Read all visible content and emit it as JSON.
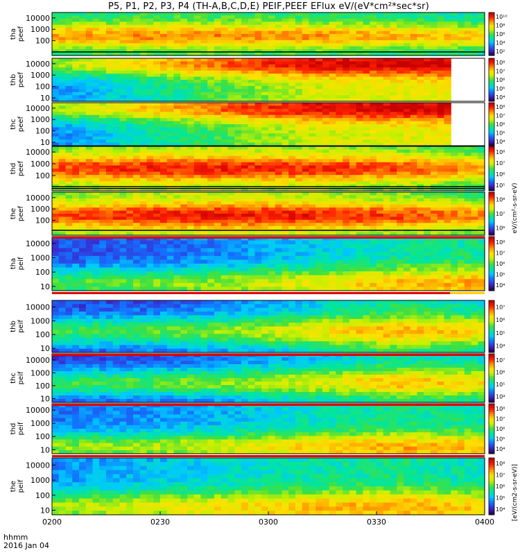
{
  "figure": {
    "title": "P5, P1, P2, P3, P4 (TH-A,B,C,D,E) PEIF,PEEF EFlux eV/(eV*cm²*sec*sr)",
    "time_axis_label": "hhmm",
    "date_label": "2016 Jan 04",
    "colorbar_caption_top": "eV/(cm²-s-sr-eV)",
    "colorbar_caption_bottom": "[eV/(cm2-s-sr-eV)]"
  },
  "chart_data": {
    "type": "heatmap",
    "x_ticks": [
      "0200",
      "0230",
      "0300",
      "0330",
      "0400"
    ],
    "x_range": [
      "0200",
      "0400"
    ],
    "y_scale": "log",
    "y_range_eV": [
      5,
      30000
    ],
    "colormap": [
      "#2a005a",
      "#3a2bd0",
      "#1470ff",
      "#00c8ff",
      "#00e6a0",
      "#40e040",
      "#c8f000",
      "#ffe000",
      "#ff9000",
      "#ff2000",
      "#c80000"
    ],
    "panels": [
      {
        "id": "tha_peef",
        "label_line1": "tha",
        "label_line2": "peef",
        "y_ticks": [
          "100",
          "1000",
          "10000"
        ],
        "cbar_ticks": [
          "10²",
          "10⁴",
          "10⁶",
          "10⁸",
          "10¹⁰"
        ],
        "cbar_range_exp": [
          1.5,
          10.5
        ],
        "level": [
          0.55,
          0.6,
          0.62,
          0.58,
          0.52,
          0.45
        ],
        "band_mid": 0.55,
        "lines": [
          0.05
        ]
      },
      {
        "id": "thb_peef",
        "label_line1": "thb",
        "label_line2": "peef",
        "y_ticks": [
          "10",
          "100",
          "1000",
          "10000"
        ],
        "cbar_ticks": [
          "10⁴",
          "10⁵",
          "10⁶",
          "10⁷",
          "10⁸"
        ],
        "cbar_range_exp": [
          3.5,
          8.5
        ],
        "level": [
          0.2,
          0.45,
          0.7,
          0.9,
          0.95,
          1.0
        ],
        "band_mid": 0.1,
        "lines": [],
        "data_end_fraction": 0.91
      },
      {
        "id": "thc_peef",
        "label_line1": "thc",
        "label_line2": "peef",
        "y_ticks": [
          "10",
          "100",
          "1000",
          "10000"
        ],
        "cbar_ticks": [
          "10⁴",
          "10⁵",
          "10⁶",
          "10⁷",
          "10⁸"
        ],
        "cbar_range_exp": [
          3.5,
          8.5
        ],
        "level": [
          0.2,
          0.45,
          0.7,
          0.9,
          0.95,
          1.0
        ],
        "band_mid": 0.1,
        "lines": [],
        "data_end_fraction": 0.91
      },
      {
        "id": "thd_peef",
        "label_line1": "thd",
        "label_line2": "peef",
        "y_ticks": [
          "100",
          "1000",
          "10000"
        ],
        "cbar_ticks": [
          "10⁵",
          "10⁶",
          "10⁷",
          "10⁸"
        ],
        "cbar_range_exp": [
          4.5,
          8.5
        ],
        "level": [
          0.72,
          0.8,
          0.82,
          0.78,
          0.72,
          0.55
        ],
        "band_mid": 0.5,
        "lines": [
          0.06,
          0.02
        ]
      },
      {
        "id": "the_peef",
        "label_line1": "the",
        "label_line2": "peef",
        "y_ticks": [
          "100",
          "1000",
          "10000"
        ],
        "cbar_ticks": [
          "10⁶",
          "10⁷",
          "10⁸"
        ],
        "cbar_range_exp": [
          5.5,
          8.5
        ],
        "level": [
          0.72,
          0.82,
          0.86,
          0.82,
          0.74,
          0.6
        ],
        "band_mid": 0.55,
        "lines": [
          0.08
        ]
      },
      {
        "id": "tha_peif",
        "label_line1": "tha",
        "label_line2": "peif",
        "y_ticks": [
          "10",
          "100",
          "1000",
          "10000"
        ],
        "cbar_ticks": [
          "10⁴",
          "10⁵",
          "10⁶",
          "10⁷",
          "10⁸"
        ],
        "cbar_range_exp": [
          3.5,
          8.5
        ],
        "level": [
          0.05,
          0.1,
          0.2,
          0.35,
          0.5,
          0.55
        ],
        "band_mid": 0.9,
        "lines": []
      },
      {
        "id": "thb_peif",
        "label_line1": "thb",
        "label_line2": "peif",
        "y_ticks": [
          "10",
          "100",
          "1000",
          "10000"
        ],
        "cbar_ticks": [
          "10⁴",
          "10⁵",
          "10⁶",
          "10⁷"
        ],
        "cbar_range_exp": [
          3.5,
          7.5
        ],
        "level": [
          0.0,
          0.05,
          0.15,
          0.35,
          0.55,
          0.4
        ],
        "band_mid": 0.6,
        "lines": []
      },
      {
        "id": "thc_peif",
        "label_line1": "thc",
        "label_line2": "peif",
        "y_ticks": [
          "10",
          "100",
          "1000",
          "10000"
        ],
        "cbar_ticks": [
          "10⁴",
          "10⁵",
          "10⁶",
          "10⁷"
        ],
        "cbar_range_exp": [
          3.5,
          7.5
        ],
        "level": [
          0.0,
          0.05,
          0.15,
          0.3,
          0.5,
          0.4
        ],
        "band_mid": 0.6,
        "lines": []
      },
      {
        "id": "thd_peif",
        "label_line1": "thd",
        "label_line2": "peif",
        "y_ticks": [
          "10",
          "100",
          "1000",
          "10000"
        ],
        "cbar_ticks": [
          "10⁴",
          "10⁵",
          "10⁶",
          "10⁷",
          "10⁸"
        ],
        "cbar_range_exp": [
          3.5,
          8.5
        ],
        "level": [
          0.15,
          0.2,
          0.3,
          0.45,
          0.55,
          0.5
        ],
        "band_mid": 0.9,
        "lines": []
      },
      {
        "id": "the_peif",
        "label_line1": "the",
        "label_line2": "peif",
        "y_ticks": [
          "10",
          "100",
          "1000",
          "10000"
        ],
        "cbar_ticks": [
          "10⁴",
          "10⁵",
          "10⁶",
          "10⁷",
          "10⁸"
        ],
        "cbar_range_exp": [
          3.5,
          8.5
        ],
        "level": [
          0.2,
          0.3,
          0.4,
          0.5,
          0.55,
          0.45
        ],
        "band_mid": 0.9,
        "lines": []
      }
    ],
    "separator_lines": [
      {
        "after_panel": "the_peef",
        "color": "#e00000"
      },
      {
        "after_panel": "tha_peif",
        "color": "#e00000",
        "tail_color": "#ffd000"
      },
      {
        "after_panel": "thb_peif",
        "color": "#e00000"
      },
      {
        "after_panel": "thc_peif",
        "color": "#e00000"
      },
      {
        "after_panel": "thd_peif",
        "color": "#e00000"
      }
    ]
  }
}
